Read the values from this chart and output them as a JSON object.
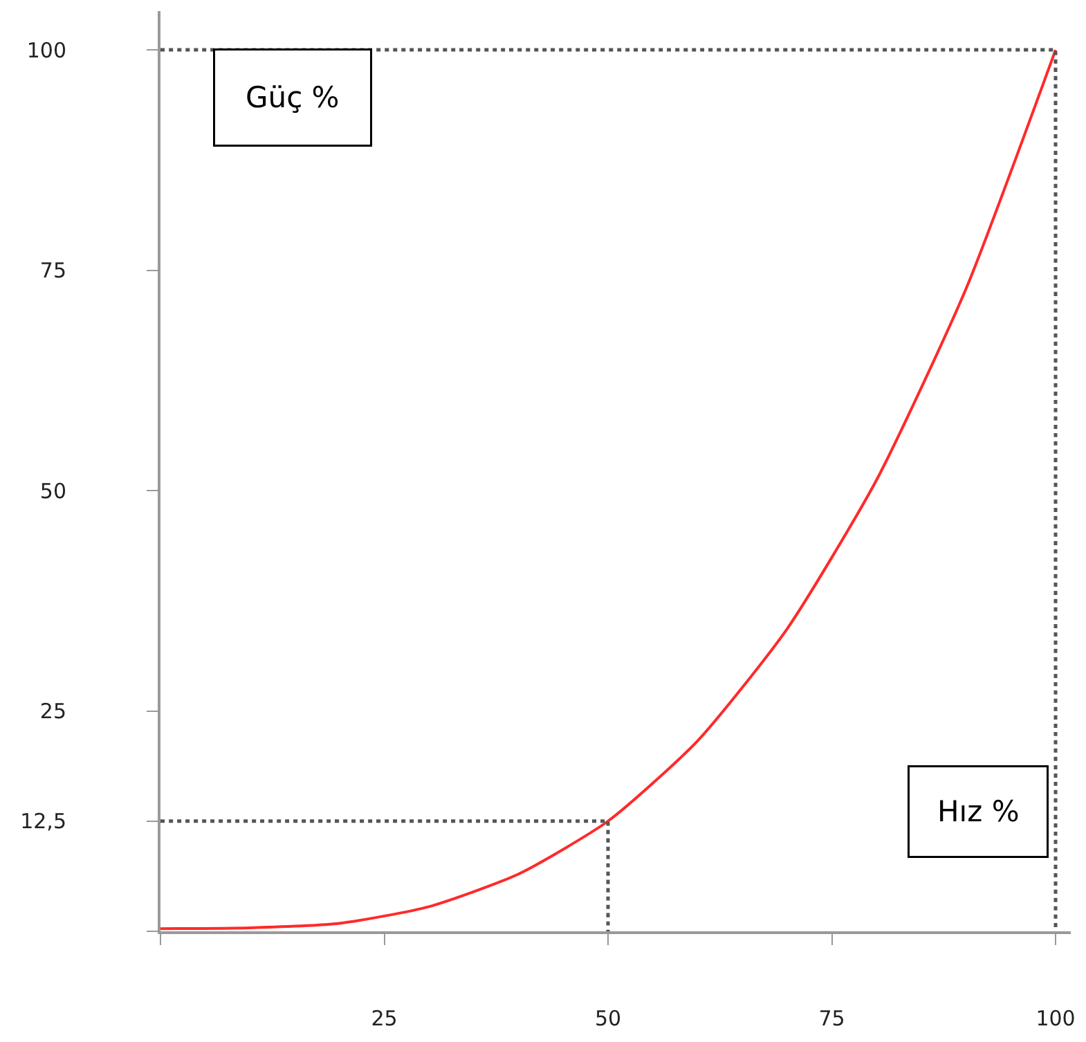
{
  "chart_data": {
    "type": "line",
    "xlabel": "Hız %",
    "ylabel": "Güç %",
    "xlim": [
      0,
      101.7
    ],
    "ylim": [
      0,
      104.4
    ],
    "xticks": [
      {
        "value": 0,
        "label": null
      },
      25,
      50,
      75,
      100
    ],
    "yticks": [
      {
        "value": 0,
        "label": null
      },
      {
        "value": 12.5,
        "label": "12,5"
      },
      25,
      50,
      75,
      100
    ],
    "marker": "none",
    "series": [
      {
        "color": "#ff2a2a",
        "line_style": "solid",
        "x": [
          0,
          10,
          20,
          30,
          40,
          50,
          60,
          70,
          80,
          90,
          100
        ],
        "values": [
          0.3,
          0.4,
          0.9,
          2.8,
          6.5,
          12.5,
          21.6,
          34.3,
          51.2,
          72.9,
          100
        ]
      },
      {
        "color": "#555555",
        "line_style": "dotted",
        "x": [
          0,
          50,
          50
        ],
        "values": [
          12.5,
          12.5,
          0
        ]
      },
      {
        "color": "#555555",
        "line_style": "dotted",
        "x": [
          0,
          100,
          100
        ],
        "values": [
          100,
          100,
          0
        ]
      }
    ]
  }
}
